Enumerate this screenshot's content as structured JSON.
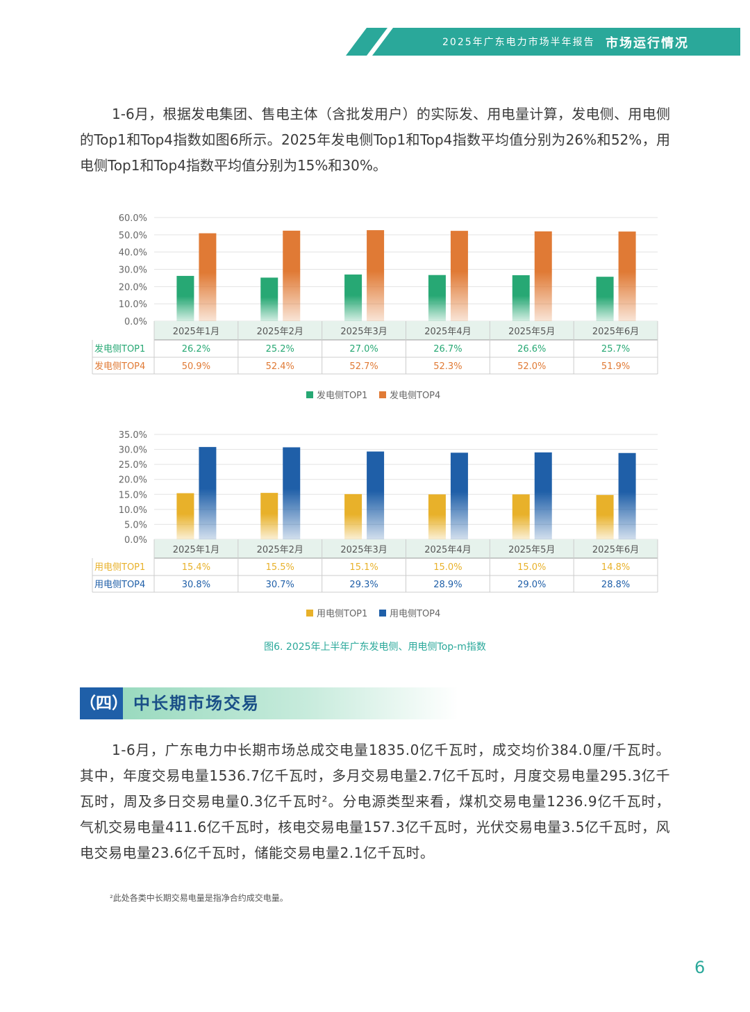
{
  "header": {
    "report_title": "2025年广东电力市场半年报告",
    "section": "市场运行情况",
    "color": "#2aa89a"
  },
  "intro_paragraph": "1-6月，根据发电集团、售电主体（含批发用户）的实际发、用电量计算，发电侧、用电侧的Top1和Top4指数如图6所示。2025年发电侧Top1和Top4指数平均值分别为26%和52%，用电侧Top1和Top4指数平均值分别为15%和30%。",
  "chart_data": [
    {
      "type": "bar",
      "title": "",
      "categories": [
        "2025年1月",
        "2025年2月",
        "2025年3月",
        "2025年4月",
        "2025年5月",
        "2025年6月"
      ],
      "ylim": [
        0,
        60
      ],
      "yticks": [
        "0.0%",
        "10.0%",
        "20.0%",
        "30.0%",
        "40.0%",
        "50.0%",
        "60.0%"
      ],
      "ytick_values": [
        0,
        10,
        20,
        30,
        40,
        50,
        60
      ],
      "grid": true,
      "legend_position": "bottom",
      "series": [
        {
          "name": "发电侧TOP1",
          "values": [
            26.2,
            25.2,
            27.0,
            26.7,
            26.6,
            25.7
          ],
          "labels": [
            "26.2%",
            "25.2%",
            "27.0%",
            "26.7%",
            "26.6%",
            "25.7%"
          ],
          "color": "#27a874"
        },
        {
          "name": "发电侧TOP4",
          "values": [
            50.9,
            52.4,
            52.7,
            52.3,
            52.0,
            51.9
          ],
          "labels": [
            "50.9%",
            "52.4%",
            "52.7%",
            "52.3%",
            "52.0%",
            "51.9%"
          ],
          "color": "#e07a35"
        }
      ]
    },
    {
      "type": "bar",
      "title": "",
      "categories": [
        "2025年1月",
        "2025年2月",
        "2025年3月",
        "2025年4月",
        "2025年5月",
        "2025年6月"
      ],
      "ylim": [
        0,
        35
      ],
      "yticks": [
        "0.0%",
        "5.0%",
        "10.0%",
        "15.0%",
        "20.0%",
        "25.0%",
        "30.0%",
        "35.0%"
      ],
      "ytick_values": [
        0,
        5,
        10,
        15,
        20,
        25,
        30,
        35
      ],
      "grid": true,
      "legend_position": "bottom",
      "series": [
        {
          "name": "用电侧TOP1",
          "values": [
            15.4,
            15.5,
            15.1,
            15.0,
            15.0,
            14.8
          ],
          "labels": [
            "15.4%",
            "15.5%",
            "15.1%",
            "15.0%",
            "15.0%",
            "14.8%"
          ],
          "color": "#e8b12a"
        },
        {
          "name": "用电侧TOP4",
          "values": [
            30.8,
            30.7,
            29.3,
            28.9,
            29.0,
            28.8
          ],
          "labels": [
            "30.8%",
            "30.7%",
            "29.3%",
            "28.9%",
            "29.0%",
            "28.8%"
          ],
          "color": "#1f5fa8"
        }
      ]
    }
  ],
  "figure_caption": "图6. 2025年上半年广东发电侧、用电侧Top-m指数",
  "section": {
    "number": "（四）",
    "title": "中长期市场交易"
  },
  "body_paragraph": "1-6月，广东电力中长期市场总成交电量1835.0亿千瓦时，成交均价384.0厘/千瓦时。其中，年度交易电量1536.7亿千瓦时，多月交易电量2.7亿千瓦时，月度交易电量295.3亿千瓦时，周及多日交易电量0.3亿千瓦时²。分电源类型来看，煤机交易电量1236.9亿千瓦时，气机交易电量411.6亿千瓦时，核电交易电量157.3亿千瓦时，光伏交易电量3.5亿千瓦时，风电交易电量23.6亿千瓦时，储能交易电量2.1亿千瓦时。",
  "footnote": "²此处各类中长期交易电量是指净合约成交电量。",
  "page_number": "6"
}
